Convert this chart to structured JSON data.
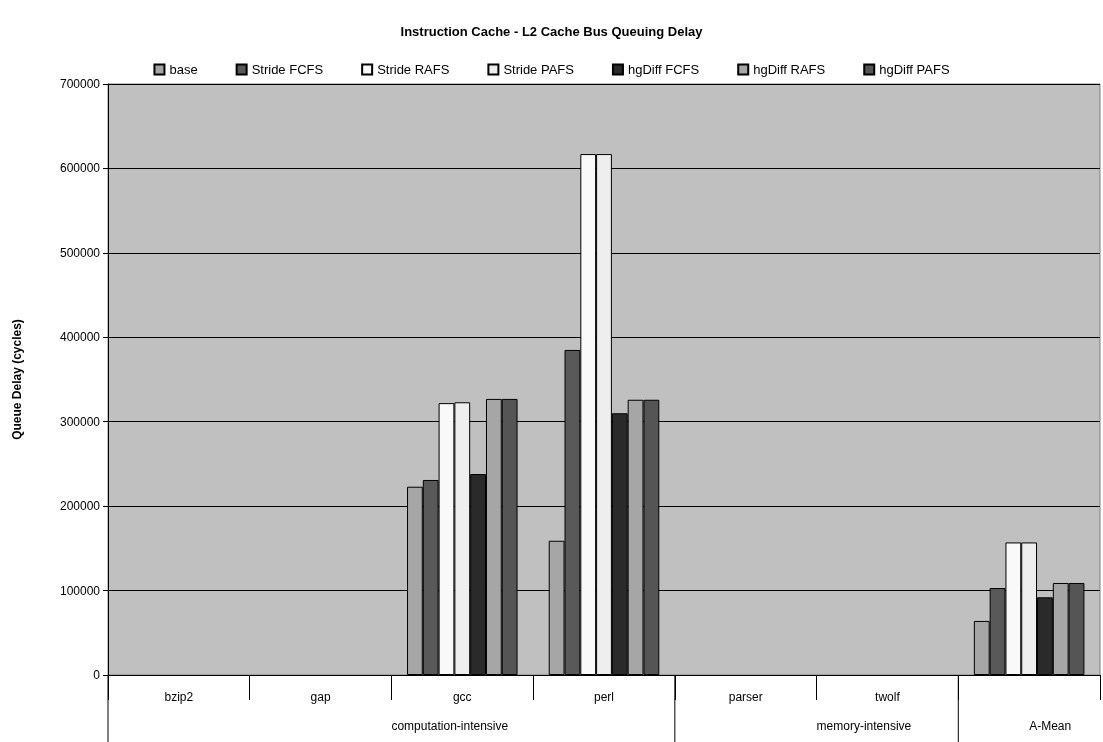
{
  "chart_data": {
    "type": "bar",
    "title": "Instruction Cache - L2 Cache Bus Queuing Delay",
    "ylabel": "Queue Delay (cycles)",
    "categories": [
      "bzip2",
      "gap",
      "gcc",
      "perl",
      "parser",
      "twolf",
      null
    ],
    "annotations": [
      "computation-intensive",
      "memory-intensive",
      "A-Mean"
    ],
    "series": [
      {
        "name": "base",
        "color": "#a6a6a6",
        "values": [
          0,
          0,
          223000,
          159000,
          0,
          0,
          64000
        ]
      },
      {
        "name": "Stride FCFS",
        "color": "#595959",
        "values": [
          0,
          0,
          231000,
          385000,
          0,
          0,
          103000
        ]
      },
      {
        "name": "Stride RAFS",
        "color": "#f9f9f9",
        "values": [
          0,
          0,
          322000,
          617000,
          0,
          0,
          157000
        ]
      },
      {
        "name": "Stride PAFS",
        "color": "#eeeeee",
        "values": [
          0,
          0,
          323000,
          617000,
          0,
          0,
          157000
        ]
      },
      {
        "name": "hgDiff FCFS",
        "color": "#2a2a2a",
        "values": [
          0,
          0,
          238000,
          310000,
          0,
          0,
          92000
        ]
      },
      {
        "name": "hgDiff RAFS",
        "color": "#a6a6a6",
        "values": [
          0,
          0,
          327000,
          326000,
          0,
          0,
          109000
        ]
      },
      {
        "name": "hgDiff PAFS",
        "color": "#555555",
        "values": [
          0,
          0,
          327000,
          326000,
          0,
          0,
          109000
        ]
      }
    ],
    "ylim": [
      0,
      700000
    ],
    "yticks": [
      0,
      100000,
      200000,
      300000,
      400000,
      500000,
      600000,
      700000
    ],
    "grid": "y",
    "legend": "top"
  }
}
